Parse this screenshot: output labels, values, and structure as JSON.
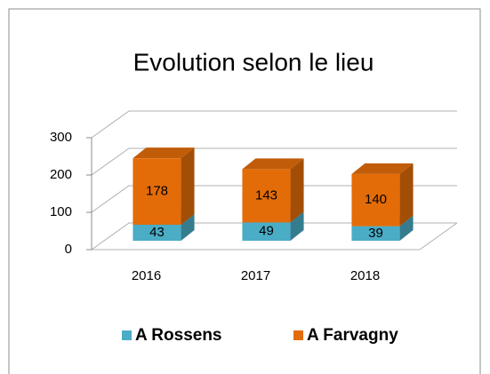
{
  "chart_data": {
    "type": "bar",
    "stacked": true,
    "title": "Evolution selon le lieu",
    "categories": [
      "2016",
      "2017",
      "2018"
    ],
    "series": [
      {
        "name": "A Rossens",
        "color": "#4bacc6",
        "values": [
          43,
          49,
          39
        ]
      },
      {
        "name": "A Farvagny",
        "color": "#e36c09",
        "values": [
          178,
          143,
          140
        ]
      }
    ],
    "ylim": [
      0,
      300
    ],
    "yticks": [
      0,
      100,
      200,
      300
    ],
    "grid": true,
    "legend": "bottom"
  }
}
